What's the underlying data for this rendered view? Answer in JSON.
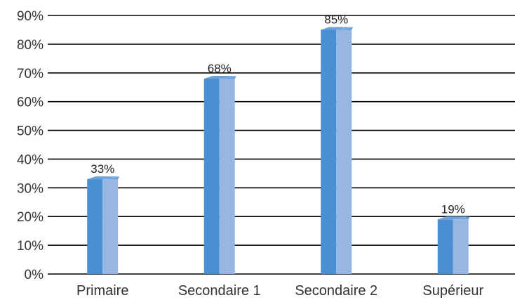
{
  "chart_data": {
    "type": "bar",
    "title": "",
    "xlabel": "",
    "ylabel": "",
    "categories": [
      "Primaire",
      "Secondaire 1",
      "Secondaire 2",
      "Supérieur"
    ],
    "values": [
      33,
      68,
      85,
      19
    ],
    "data_labels": [
      "33%",
      "68%",
      "85%",
      "19%"
    ],
    "ylim": [
      0,
      90
    ],
    "yticks": [
      0,
      10,
      20,
      30,
      40,
      50,
      60,
      70,
      80,
      90
    ],
    "ytick_labels": [
      "0%",
      "10%",
      "20%",
      "30%",
      "40%",
      "50%",
      "60%",
      "70%",
      "80%",
      "90%"
    ],
    "grid": true,
    "legend": "none",
    "colors": {
      "bar_front_dark": "#4a8fd4",
      "bar_front_light": "#97b7e2",
      "bar_top": "#6aa2dc",
      "gridline": "#000000"
    }
  }
}
